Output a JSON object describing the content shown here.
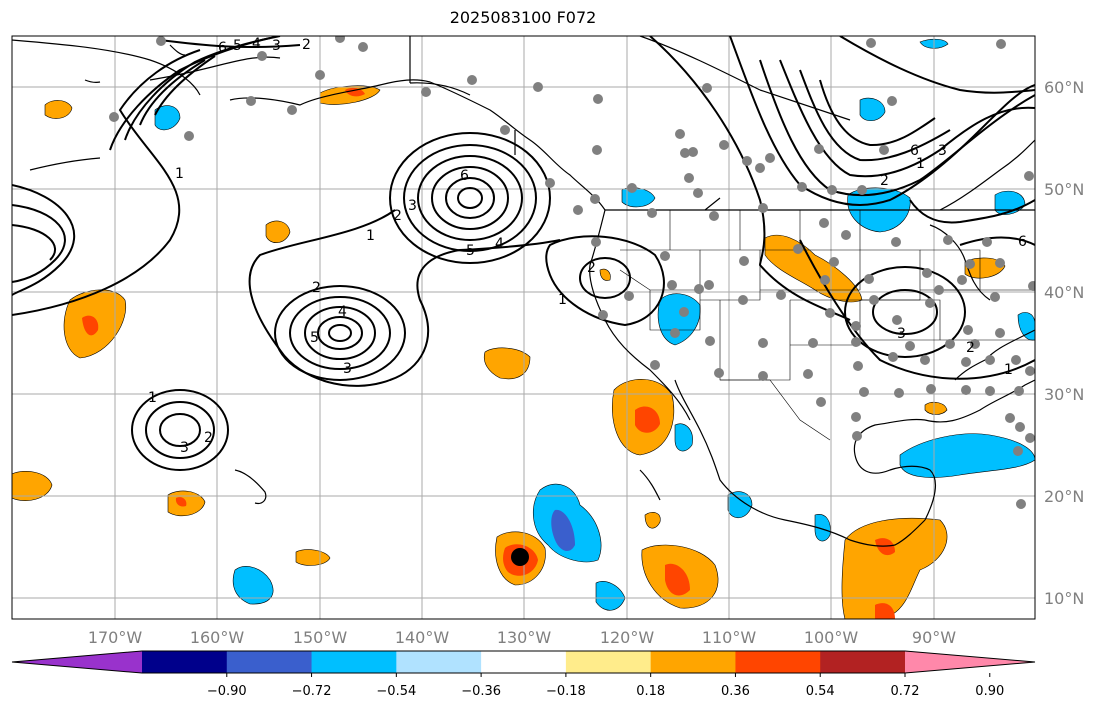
{
  "title": "2025083100 F072",
  "longitude_labels": [
    "170°W",
    "160°W",
    "150°W",
    "140°W",
    "130°W",
    "120°W",
    "110°W",
    "100°W",
    "90°W"
  ],
  "latitude_labels": [
    "60°N",
    "50°N",
    "40°N",
    "30°N",
    "20°N",
    "10°N"
  ],
  "colorbar": {
    "tick_labels": [
      "−0.90",
      "−0.72",
      "−0.54",
      "−0.36",
      "−0.18",
      "0.18",
      "0.36",
      "0.54",
      "0.72",
      "0.90"
    ],
    "colors": [
      "#9932cc",
      "#00008b",
      "#3a5fcd",
      "#00bfff",
      "#b0e2ff",
      "#ffffff",
      "#ffec8b",
      "#ffa500",
      "#ff4500",
      "#b22222",
      "#ff88aa"
    ]
  },
  "contour_labels": {
    "aleutian_low": [
      "6",
      "5",
      "4",
      "3",
      "2",
      "1"
    ],
    "gulf_alaska_high": [
      "1",
      "2",
      "3",
      "6",
      "5",
      "4"
    ],
    "central_pacific": [
      "2",
      "4",
      "5",
      "3"
    ],
    "subtropical": [
      "1",
      "3",
      "2"
    ],
    "california": [
      "2",
      "1"
    ],
    "canada_north": [
      "2",
      "1",
      "6",
      "3"
    ],
    "midwest": [
      "3",
      "2",
      "1",
      "6"
    ]
  },
  "colors": {
    "map_border": "#000000",
    "gridline": "#aaaaaa",
    "station_dot": "#808080",
    "storm_marker": "#000000"
  }
}
